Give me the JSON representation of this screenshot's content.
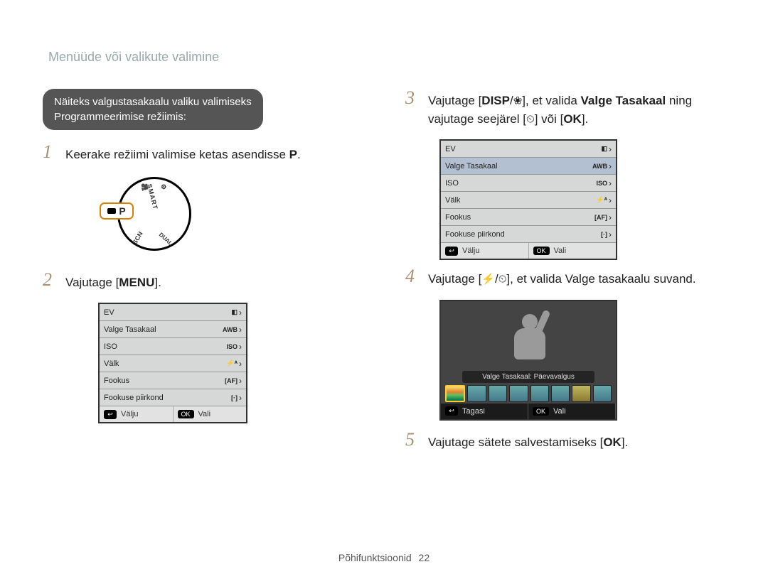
{
  "page": {
    "header": "Menüüde või valikute valimine",
    "footer_label": "Põhifunktsioonid",
    "footer_page": "22"
  },
  "intro": {
    "line1": "Näiteks valgustasakaalu valiku valimiseks",
    "line2": "Programmeerimise režiimis:"
  },
  "steps": {
    "s1": {
      "num": "1",
      "pre": "Keerake režiimi valimise ketas asendisse ",
      "mode": "P",
      "post": "."
    },
    "s2": {
      "num": "2",
      "pre": "Vajutage [",
      "menu": "MENU",
      "post": "]."
    },
    "s3": {
      "num": "3",
      "pre": "Vajutage [",
      "disp": "DISP",
      "slash": "/",
      "flower": "❀",
      "mid": "], et valida ",
      "bold_target": "Valge Tasakaal",
      "tail1": " ning vajutage seejärel [",
      "timer": "⏲",
      "tail2": "] või [",
      "ok": "OK",
      "tail3": "]."
    },
    "s4": {
      "num": "4",
      "pre": "Vajutage [",
      "flash": "⚡",
      "slash": "/",
      "timer": "⏲",
      "post": "], et valida Valge tasakaalu suvand."
    },
    "s5": {
      "num": "5",
      "pre": "Vajutage sätete salvestamiseks [",
      "ok": "OK",
      "post": "]."
    }
  },
  "lcd_menu": {
    "rows": [
      {
        "label": "EV",
        "icon": "◧",
        "sel": false,
        "sel3": false
      },
      {
        "label": "Valge Tasakaal",
        "icon": "AWB",
        "sel": false,
        "sel3": true
      },
      {
        "label": "ISO",
        "icon": "ISO",
        "sel": false,
        "sel3": false
      },
      {
        "label": "Välk",
        "icon": "⚡ᴬ",
        "sel": false,
        "sel3": false
      },
      {
        "label": "Fookus",
        "icon": "[AF]",
        "sel": false,
        "sel3": false
      },
      {
        "label": "Fookuse piirkond",
        "icon": "[·]",
        "sel": false,
        "sel3": false
      }
    ],
    "footer_left_key": "↩",
    "footer_left_label": "Välju",
    "footer_right_key": "OK",
    "footer_right_label": "Vali"
  },
  "preview": {
    "caption": "Valge Tasakaal: Päevavalgus",
    "footer_left_key": "↩",
    "footer_left_label": "Tagasi",
    "footer_right_key": "OK",
    "footer_right_label": "Vali",
    "thumbs": [
      "sel",
      "",
      "",
      "",
      "",
      "",
      "bulb",
      ""
    ]
  },
  "dial": {
    "p": "P",
    "smart": "SMART",
    "scn": "SCN",
    "dual": "DUAL"
  }
}
